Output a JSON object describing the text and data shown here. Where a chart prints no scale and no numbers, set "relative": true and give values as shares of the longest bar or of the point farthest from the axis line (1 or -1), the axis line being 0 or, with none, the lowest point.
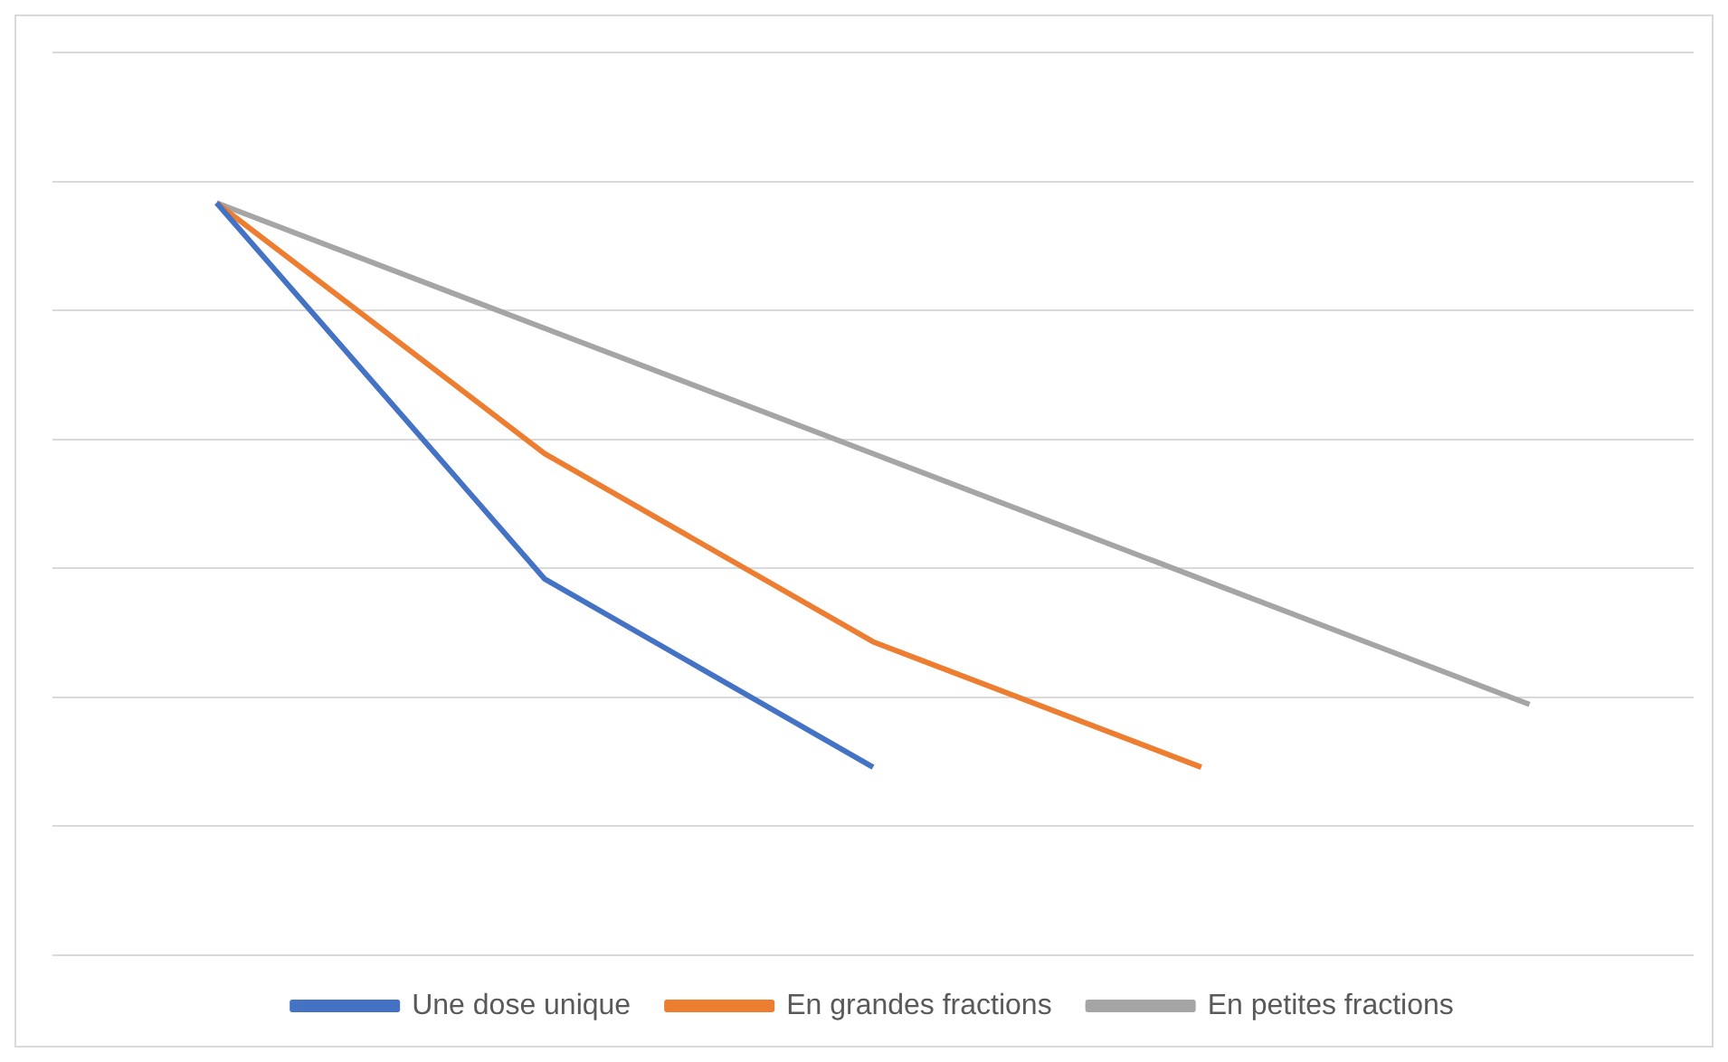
{
  "chart_data": {
    "type": "line",
    "relative": true,
    "categories": [
      null,
      null,
      null,
      null,
      null
    ],
    "series": [
      {
        "name": "Une dose unique",
        "color": "#4472c4",
        "values": [
          1,
          0.5,
          0.25,
          null,
          null
        ]
      },
      {
        "name": "En grandes fractions",
        "color": "#ed7d31",
        "values": [
          1,
          0.6667,
          0.4167,
          0.25,
          null
        ]
      },
      {
        "name": "En petites fractions",
        "color": "#a5a5a5",
        "values": [
          1,
          0.8333,
          0.6667,
          0.5,
          0.3333
        ]
      }
    ],
    "grid": "y",
    "legend": "bottom",
    "marker": "none",
    "line_style": "solid"
  }
}
